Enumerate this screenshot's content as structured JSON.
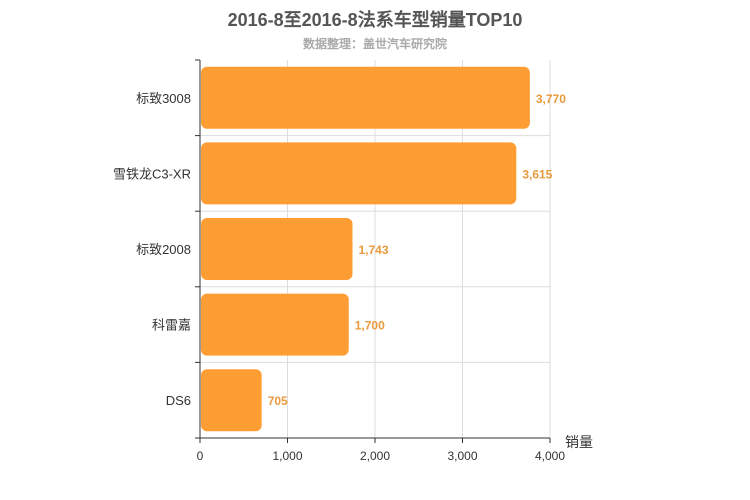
{
  "title": "2016-8至2016-8法系车型销量TOP10",
  "subtitle": "数据整理：盖世汽车研究院",
  "colors": {
    "bar": "#ff9d35",
    "value_label": "#e89a3c",
    "grid": "#dddddd",
    "axis": "#333333"
  },
  "chart_data": {
    "type": "bar",
    "orientation": "horizontal",
    "title": "2016-8至2016-8法系车型销量TOP10",
    "subtitle": "数据整理：盖世汽车研究院",
    "categories": [
      "标致3008",
      "雪铁龙C3-XR",
      "标致2008",
      "科雷嘉",
      "DS6"
    ],
    "values": [
      3770,
      3615,
      1743,
      1700,
      705
    ],
    "value_labels": [
      "3,770",
      "3,615",
      "1,743",
      "1,700",
      "705"
    ],
    "xlabel": "销量",
    "ylabel": "",
    "xlim": [
      0,
      4000
    ],
    "xticks": [
      0,
      1000,
      2000,
      3000,
      4000
    ],
    "xtick_labels": [
      "0",
      "1,000",
      "2,000",
      "3,000",
      "4,000"
    ],
    "grid": true
  }
}
